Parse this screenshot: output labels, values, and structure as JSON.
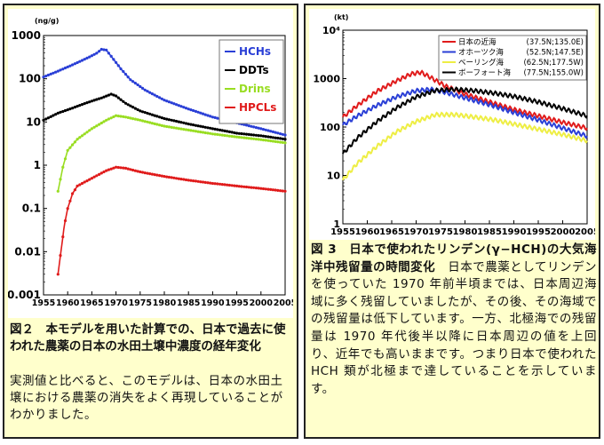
{
  "left": {
    "caption": {
      "title": "図２　本モデルを用いた計算での、日本で過去に使われた農薬の日本の水田土壌中濃度の経年変化",
      "body": "実測値と比べると、このモデルは、日本の水田土壌における農薬の消失をよく再現していることがわかりました。"
    }
  },
  "right": {
    "caption": {
      "title": "図 3　日本で使われたリンデン(γ−HCH)の大気海洋中残留量の時間変化",
      "body": "日本で農薬としてリンデンを使っていた 1970 年前半頃までは、日本周辺海域に多く残留していましたが、その後、その海域での残留量は低下しています。一方、北極海での残留量は 1970 年代後半以降に日本周辺の値を上回り、近年でも高いままです。つまり日本で使われた HCH 類が北極まで達していることを示しています。"
    }
  },
  "chart_data": [
    {
      "type": "line",
      "title": "",
      "ylabel": "(ng/g)",
      "xlabel": "",
      "y_scale": "log",
      "ylim": [
        0.001,
        1000
      ],
      "xlim": [
        1955,
        2005
      ],
      "y_ticks": [
        "1000",
        "100",
        "10",
        "1",
        "0.1",
        "0.01",
        "0.001"
      ],
      "x_ticks": [
        "1955",
        "1960",
        "1965",
        "1970",
        "1975",
        "1980",
        "1985",
        "1990",
        "1995",
        "2000",
        "2005"
      ],
      "grid": false,
      "legend_position": "top-right",
      "series": [
        {
          "name": "HCHs",
          "color": "#2a3fd6",
          "points": [
            [
              1955,
              110
            ],
            [
              1958,
              150
            ],
            [
              1961,
              210
            ],
            [
              1964,
              300
            ],
            [
              1966,
              390
            ],
            [
              1967,
              480
            ],
            [
              1968,
              460
            ],
            [
              1969,
              330
            ],
            [
              1971,
              170
            ],
            [
              1973,
              95
            ],
            [
              1976,
              55
            ],
            [
              1980,
              32
            ],
            [
              1985,
              20
            ],
            [
              1990,
              13
            ],
            [
              2000,
              7
            ],
            [
              2005,
              5
            ]
          ]
        },
        {
          "name": "DDTs",
          "color": "#000000",
          "points": [
            [
              1955,
              11
            ],
            [
              1958,
              16
            ],
            [
              1961,
              21
            ],
            [
              1964,
              28
            ],
            [
              1967,
              36
            ],
            [
              1969,
              44
            ],
            [
              1970,
              40
            ],
            [
              1972,
              27
            ],
            [
              1975,
              18
            ],
            [
              1980,
              12
            ],
            [
              1985,
              9
            ],
            [
              1990,
              7
            ],
            [
              1995,
              5.5
            ],
            [
              2000,
              4.8
            ],
            [
              2005,
              4
            ]
          ]
        },
        {
          "name": "Drins",
          "color": "#99dd22",
          "points": [
            [
              1958,
              0.25
            ],
            [
              1959,
              0.9
            ],
            [
              1960,
              2.2
            ],
            [
              1962,
              4
            ],
            [
              1965,
              7
            ],
            [
              1968,
              11
            ],
            [
              1970,
              14
            ],
            [
              1972,
              13
            ],
            [
              1975,
              11
            ],
            [
              1980,
              8
            ],
            [
              1985,
              6.5
            ],
            [
              1990,
              5.3
            ],
            [
              1995,
              4.5
            ],
            [
              2000,
              3.9
            ],
            [
              2005,
              3.3
            ]
          ]
        },
        {
          "name": "HPCLs",
          "color": "#e01b1b",
          "points": [
            [
              1958,
              0.003
            ],
            [
              1958.6,
              0.01
            ],
            [
              1959.3,
              0.04
            ],
            [
              1960,
              0.1
            ],
            [
              1961,
              0.22
            ],
            [
              1962,
              0.33
            ],
            [
              1965,
              0.5
            ],
            [
              1968,
              0.75
            ],
            [
              1970,
              0.9
            ],
            [
              1972,
              0.85
            ],
            [
              1975,
              0.7
            ],
            [
              1980,
              0.55
            ],
            [
              1985,
              0.45
            ],
            [
              1990,
              0.38
            ],
            [
              1995,
              0.33
            ],
            [
              2000,
              0.29
            ],
            [
              2005,
              0.25
            ]
          ]
        }
      ]
    },
    {
      "type": "line",
      "title": "",
      "ylabel": "(kt)",
      "xlabel": "",
      "y_scale": "log",
      "ylim": [
        1,
        10000
      ],
      "xlim": [
        1955,
        2005
      ],
      "y_ticks": [
        "10⁴",
        "1000",
        "100",
        "10",
        "1"
      ],
      "x_ticks": [
        "1955",
        "1960",
        "1965",
        "1970",
        "1975",
        "1980",
        "1985",
        "1990",
        "1995",
        "2000",
        "2005"
      ],
      "grid": false,
      "legend_position": "top-right",
      "series": [
        {
          "name": "日本の近海",
          "coords": "(37.5N;135.0E)",
          "color": "#e01b1b",
          "points": [
            [
              1955,
              160
            ],
            [
              1958,
              280
            ],
            [
              1962,
              550
            ],
            [
              1966,
              900
            ],
            [
              1969,
              1250
            ],
            [
              1971,
              1350
            ],
            [
              1973,
              1050
            ],
            [
              1976,
              700
            ],
            [
              1980,
              480
            ],
            [
              1985,
              330
            ],
            [
              1990,
              230
            ],
            [
              1995,
              170
            ],
            [
              2000,
              125
            ],
            [
              2005,
              95
            ]
          ]
        },
        {
          "name": "オホーツク海",
          "coords": "(52.5N;147.5E)",
          "color": "#2a3fd6",
          "points": [
            [
              1955,
              110
            ],
            [
              1958,
              170
            ],
            [
              1962,
              280
            ],
            [
              1966,
              420
            ],
            [
              1970,
              560
            ],
            [
              1973,
              600
            ],
            [
              1976,
              520
            ],
            [
              1980,
              400
            ],
            [
              1985,
              290
            ],
            [
              1990,
              200
            ],
            [
              1995,
              140
            ],
            [
              2000,
              95
            ],
            [
              2005,
              65
            ]
          ]
        },
        {
          "name": "ベーリング海",
          "coords": "(62.5N;177.5W)",
          "color": "#eeee44",
          "points": [
            [
              1955,
              8
            ],
            [
              1958,
              18
            ],
            [
              1962,
              40
            ],
            [
              1966,
              80
            ],
            [
              1970,
              130
            ],
            [
              1974,
              180
            ],
            [
              1978,
              180
            ],
            [
              1982,
              160
            ],
            [
              1986,
              140
            ],
            [
              1990,
              115
            ],
            [
              1995,
              90
            ],
            [
              2000,
              70
            ],
            [
              2005,
              52
            ]
          ]
        },
        {
          "name": "ボーフォート海",
          "coords": "(77.5N;155.0W)",
          "color": "#000000",
          "points": [
            [
              1955,
              28
            ],
            [
              1958,
              60
            ],
            [
              1962,
              130
            ],
            [
              1966,
              250
            ],
            [
              1970,
              420
            ],
            [
              1974,
              570
            ],
            [
              1978,
              600
            ],
            [
              1982,
              560
            ],
            [
              1986,
              500
            ],
            [
              1990,
              430
            ],
            [
              1995,
              330
            ],
            [
              2000,
              240
            ],
            [
              2005,
              170
            ]
          ]
        }
      ]
    }
  ]
}
